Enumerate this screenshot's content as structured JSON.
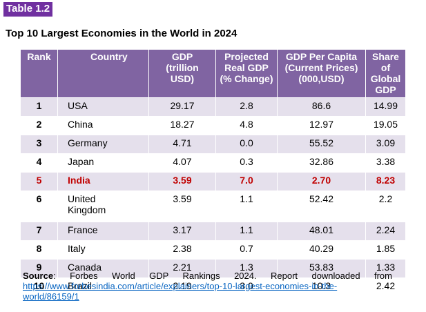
{
  "label": "Table 1.2",
  "title": "Top 10 Largest Economies in the World in 2024",
  "headers": {
    "rank": "Rank",
    "country": "Country",
    "gdp": [
      "GDP",
      "(trillion",
      "USD)"
    ],
    "growth": [
      "Projected",
      "Real GDP",
      "(% Change)"
    ],
    "per_capita": [
      "GDP Per Capita",
      "(Current Prices)",
      "(000,USD)"
    ],
    "share": [
      "Share of",
      "Global",
      "GDP"
    ]
  },
  "rows": [
    {
      "rank": "1",
      "country": [
        "USA"
      ],
      "gdp": "29.17",
      "growth": "2.8",
      "per_capita": "86.6",
      "share": "14.99"
    },
    {
      "rank": "2",
      "country": [
        "China"
      ],
      "gdp": "18.27",
      "growth": "4.8",
      "per_capita": "12.97",
      "share": "19.05"
    },
    {
      "rank": "3",
      "country": [
        "Germany"
      ],
      "gdp": "4.71",
      "growth": "0.0",
      "per_capita": "55.52",
      "share": "3.09"
    },
    {
      "rank": "4",
      "country": [
        "Japan"
      ],
      "gdp": "4.07",
      "growth": "0.3",
      "per_capita": "32.86",
      "share": "3.38"
    },
    {
      "rank": "5",
      "country": [
        "India"
      ],
      "gdp": "3.59",
      "growth": "7.0",
      "per_capita": "2.70",
      "share": "8.23",
      "highlight": true
    },
    {
      "rank": "6",
      "country": [
        "United",
        "Kingdom"
      ],
      "gdp": "3.59",
      "growth": "1.1",
      "per_capita": "52.42",
      "share": "2.2"
    },
    {
      "rank": "7",
      "country": [
        "France"
      ],
      "gdp": "3.17",
      "growth": "1.1",
      "per_capita": "48.01",
      "share": "2.24"
    },
    {
      "rank": "8",
      "country": [
        "Italy"
      ],
      "gdp": "2.38",
      "growth": "0.7",
      "per_capita": "40.29",
      "share": "1.85"
    },
    {
      "rank": "9",
      "country": [
        "Canada"
      ],
      "gdp": "2.21",
      "growth": "1.3",
      "per_capita": "53.83",
      "share": "1.33"
    },
    {
      "rank": "10",
      "country": [
        "Brazil"
      ],
      "gdp": "2.19",
      "growth": "3.0",
      "per_capita": "10.3",
      "share": "2.42"
    }
  ],
  "source": {
    "lead": "Source",
    "text": ": Forbes World GDP Rankings 2024. Report downloaded from",
    "link": "https://www.forbesindia.com/article/explainers/top-10-largest-economies-in-the-world/86159/1"
  },
  "colors": {
    "header_bg": "#8064a2",
    "band_bg": "#e5e0ec",
    "highlight_text": "#c00000",
    "label_bg": "#7030a0",
    "link": "#0563c1"
  }
}
